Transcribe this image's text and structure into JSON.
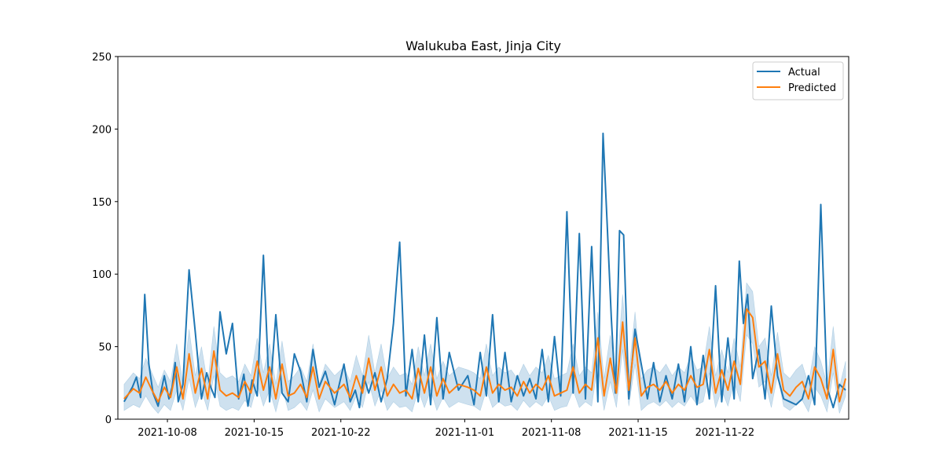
{
  "chart_data": {
    "type": "line",
    "title": "Walukuba East, Jinja City",
    "xlabel": "",
    "ylabel": "",
    "x_range": [
      "2021-10-04",
      "2021-12-02"
    ],
    "ylim": [
      0,
      250
    ],
    "y_ticks": [
      0,
      50,
      100,
      150,
      200,
      250
    ],
    "x_ticks": [
      "2021-10-08",
      "2021-10-15",
      "2021-10-22",
      "2021-11-01",
      "2021-11-08",
      "2021-11-15",
      "2021-11-22"
    ],
    "grid": false,
    "legend_position": "top-right",
    "colors": {
      "actual": "#1f77b4",
      "predicted": "#ff7f0e",
      "band": "#1f77b4"
    },
    "series": [
      {
        "name": "Actual",
        "x": [
          "2021-10-04",
          "2021-10-05",
          "2021-10-05",
          "2021-10-05",
          "2021-10-06",
          "2021-10-06",
          "2021-10-06",
          "2021-10-07",
          "2021-10-07",
          "2021-10-08",
          "2021-10-08",
          "2021-10-08",
          "2021-10-08",
          "2021-10-09",
          "2021-10-09",
          "2021-10-10",
          "2021-10-10",
          "2021-10-11",
          "2021-10-11",
          "2021-10-11",
          "2021-10-12",
          "2021-10-12",
          "2021-10-13",
          "2021-10-13",
          "2021-10-14",
          "2021-10-14",
          "2021-10-14",
          "2021-10-15",
          "2021-10-15",
          "2021-10-16",
          "2021-10-16",
          "2021-10-17",
          "2021-10-17",
          "2021-10-18",
          "2021-10-18",
          "2021-10-19",
          "2021-10-19",
          "2021-10-20",
          "2021-10-20",
          "2021-10-21",
          "2021-10-22",
          "2021-10-22",
          "2021-10-23",
          "2021-10-23",
          "2021-10-23",
          "2021-10-24",
          "2021-10-24",
          "2021-10-25",
          "2021-10-25",
          "2021-10-26",
          "2021-10-26",
          "2021-10-27",
          "2021-10-27",
          "2021-10-28",
          "2021-10-28",
          "2021-10-29",
          "2021-10-29",
          "2021-10-30",
          "2021-10-30",
          "2021-10-31",
          "2021-11-01",
          "2021-11-01",
          "2021-11-02",
          "2021-11-02",
          "2021-11-03",
          "2021-11-03",
          "2021-11-04",
          "2021-11-04",
          "2021-11-05",
          "2021-11-05",
          "2021-11-06",
          "2021-11-06",
          "2021-11-07",
          "2021-11-07",
          "2021-11-08",
          "2021-11-08",
          "2021-11-09",
          "2021-11-09",
          "2021-11-10",
          "2021-11-10",
          "2021-11-11",
          "2021-11-11",
          "2021-11-12",
          "2021-11-12",
          "2021-11-12",
          "2021-11-13",
          "2021-11-13",
          "2021-11-13",
          "2021-11-14",
          "2021-11-14",
          "2021-11-15",
          "2021-11-15",
          "2021-11-16",
          "2021-11-16",
          "2021-11-17",
          "2021-11-17",
          "2021-11-18",
          "2021-11-18",
          "2021-11-19",
          "2021-11-19",
          "2021-11-20",
          "2021-11-20",
          "2021-11-21",
          "2021-11-21",
          "2021-11-22",
          "2021-11-22",
          "2021-11-23",
          "2021-11-23",
          "2021-11-23",
          "2021-11-24",
          "2021-11-24",
          "2021-11-25",
          "2021-11-25",
          "2021-11-26",
          "2021-11-26",
          "2021-11-27",
          "2021-11-27",
          "2021-11-28",
          "2021-11-28",
          "2021-11-29",
          "2021-11-29",
          "2021-11-30",
          "2021-11-30",
          "2021-12-01",
          "2021-12-01"
        ],
        "values": [
          12,
          22,
          29,
          15,
          86,
          38,
          18,
          9,
          30,
          14,
          22,
          39,
          12,
          24,
          103,
          60,
          14,
          32,
          22,
          15,
          74,
          45,
          66,
          14,
          31,
          9,
          27,
          16,
          113,
          12,
          72,
          18,
          12,
          45,
          33,
          12,
          48,
          22,
          33,
          10,
          38,
          12,
          20,
          8,
          30,
          18,
          32,
          12,
          28,
          66,
          122,
          16,
          48,
          12,
          58,
          10,
          70,
          14,
          46,
          20,
          30,
          10,
          46,
          16,
          72,
          12,
          46,
          12,
          30,
          16,
          28,
          14,
          48,
          12,
          57,
          16,
          143,
          18,
          128,
          14,
          119,
          12,
          197,
          135,
          70,
          18,
          130,
          127,
          14,
          62,
          38,
          14,
          39,
          12,
          30,
          14,
          38,
          12,
          50,
          10,
          44,
          14,
          92,
          12,
          56,
          14,
          109,
          66,
          86,
          28,
          48,
          14,
          78,
          30,
          14,
          12,
          10,
          14,
          30,
          10,
          148,
          22,
          8,
          24,
          20
        ],
        "note_values_in_units": "count"
      },
      {
        "name": "Predicted",
        "x": [
          "2021-10-04",
          "2021-10-05",
          "2021-10-05",
          "2021-10-06",
          "2021-10-06",
          "2021-10-07",
          "2021-10-07",
          "2021-10-08",
          "2021-10-08",
          "2021-10-09",
          "2021-10-09",
          "2021-10-10",
          "2021-10-10",
          "2021-10-11",
          "2021-10-11",
          "2021-10-12",
          "2021-10-12",
          "2021-10-13",
          "2021-10-13",
          "2021-10-14",
          "2021-10-14",
          "2021-10-15",
          "2021-10-15",
          "2021-10-16",
          "2021-10-16",
          "2021-10-17",
          "2021-10-17",
          "2021-10-18",
          "2021-10-18",
          "2021-10-19",
          "2021-10-19",
          "2021-10-20",
          "2021-10-20",
          "2021-10-21",
          "2021-10-22",
          "2021-10-22",
          "2021-10-23",
          "2021-10-23",
          "2021-10-24",
          "2021-10-24",
          "2021-10-25",
          "2021-10-25",
          "2021-10-26",
          "2021-10-26",
          "2021-10-27",
          "2021-10-27",
          "2021-10-28",
          "2021-10-28",
          "2021-10-29",
          "2021-10-29",
          "2021-10-30",
          "2021-10-30",
          "2021-10-31",
          "2021-11-01",
          "2021-11-01",
          "2021-11-02",
          "2021-11-02",
          "2021-11-03",
          "2021-11-03",
          "2021-11-04",
          "2021-11-04",
          "2021-11-05",
          "2021-11-05",
          "2021-11-06",
          "2021-11-06",
          "2021-11-07",
          "2021-11-07",
          "2021-11-08",
          "2021-11-08",
          "2021-11-09",
          "2021-11-09",
          "2021-11-10",
          "2021-11-10",
          "2021-11-11",
          "2021-11-11",
          "2021-11-12",
          "2021-11-12",
          "2021-11-13",
          "2021-11-13",
          "2021-11-14",
          "2021-11-14",
          "2021-11-15",
          "2021-11-15",
          "2021-11-16",
          "2021-11-16",
          "2021-11-17",
          "2021-11-17",
          "2021-11-18",
          "2021-11-18",
          "2021-11-19",
          "2021-11-19",
          "2021-11-20",
          "2021-11-20",
          "2021-11-21",
          "2021-11-21",
          "2021-11-22",
          "2021-11-22",
          "2021-11-23",
          "2021-11-23",
          "2021-11-24",
          "2021-11-24",
          "2021-11-25",
          "2021-11-25",
          "2021-11-26",
          "2021-11-26",
          "2021-11-27",
          "2021-11-27",
          "2021-11-28",
          "2021-11-28",
          "2021-11-29",
          "2021-11-29",
          "2021-11-30",
          "2021-11-30",
          "2021-12-01",
          "2021-12-01"
        ],
        "values": [
          14,
          21,
          18,
          29,
          20,
          12,
          22,
          15,
          36,
          14,
          45,
          18,
          35,
          14,
          47,
          20,
          16,
          18,
          15,
          26,
          18,
          40,
          20,
          36,
          14,
          38,
          16,
          18,
          24,
          15,
          36,
          14,
          26,
          18,
          24,
          15,
          30,
          18,
          42,
          20,
          36,
          16,
          24,
          18,
          20,
          14,
          35,
          18,
          36,
          16,
          28,
          18,
          24,
          22,
          20,
          16,
          36,
          18,
          24,
          20,
          22,
          16,
          26,
          18,
          24,
          20,
          30,
          16,
          18,
          20,
          36,
          18,
          24,
          20,
          56,
          16,
          42,
          18,
          67,
          20,
          56,
          16,
          22,
          24,
          20,
          26,
          18,
          24,
          20,
          30,
          22,
          24,
          48,
          18,
          34,
          20,
          40,
          24,
          76,
          70,
          36,
          40,
          18,
          45,
          20,
          16,
          22,
          26,
          14,
          36,
          28,
          14,
          48,
          12,
          28
        ],
        "band_low": [
          6,
          10,
          8,
          16,
          9,
          4,
          10,
          6,
          20,
          6,
          28,
          8,
          20,
          6,
          30,
          9,
          6,
          8,
          6,
          13,
          8,
          24,
          9,
          20,
          5,
          22,
          6,
          8,
          12,
          6,
          20,
          5,
          14,
          8,
          12,
          6,
          16,
          8,
          26,
          9,
          20,
          6,
          12,
          8,
          9,
          5,
          20,
          8,
          20,
          6,
          15,
          8,
          12,
          10,
          9,
          6,
          20,
          8,
          12,
          9,
          10,
          6,
          13,
          8,
          12,
          9,
          16,
          6,
          8,
          9,
          20,
          8,
          12,
          9,
          38,
          6,
          26,
          8,
          48,
          9,
          38,
          6,
          10,
          12,
          9,
          13,
          8,
          12,
          9,
          16,
          10,
          12,
          32,
          8,
          20,
          9,
          26,
          12,
          58,
          52,
          22,
          26,
          8,
          30,
          9,
          6,
          10,
          13,
          5,
          22,
          16,
          5,
          32,
          4,
          16
        ],
        "band_high": [
          24,
          32,
          28,
          42,
          32,
          22,
          34,
          26,
          52,
          24,
          62,
          30,
          50,
          24,
          64,
          32,
          28,
          30,
          26,
          38,
          30,
          56,
          32,
          52,
          24,
          54,
          26,
          30,
          36,
          26,
          52,
          24,
          38,
          30,
          36,
          26,
          44,
          30,
          58,
          32,
          52,
          28,
          36,
          30,
          32,
          24,
          50,
          30,
          52,
          28,
          40,
          30,
          36,
          34,
          32,
          28,
          52,
          30,
          36,
          32,
          34,
          28,
          38,
          30,
          36,
          32,
          44,
          28,
          30,
          32,
          52,
          30,
          36,
          32,
          74,
          28,
          58,
          30,
          86,
          32,
          74,
          28,
          34,
          36,
          32,
          38,
          30,
          36,
          32,
          44,
          34,
          36,
          64,
          30,
          48,
          32,
          56,
          36,
          94,
          88,
          50,
          56,
          30,
          60,
          32,
          28,
          34,
          38,
          24,
          50,
          40,
          24,
          64,
          22,
          40
        ]
      }
    ]
  }
}
